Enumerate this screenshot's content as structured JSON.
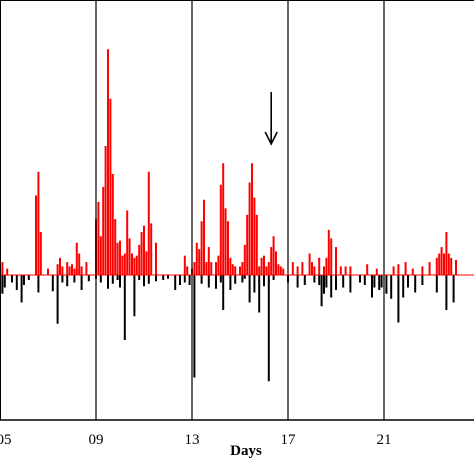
{
  "chart_data": {
    "type": "bar",
    "xlabel": "Days",
    "x_tick_labels": [
      "05",
      "09",
      "13",
      "17",
      "21"
    ],
    "x_tick_values": [
      5,
      9,
      13,
      17,
      21
    ],
    "x_range": [
      5,
      24
    ],
    "y_range": [
      -1,
      1
    ],
    "grid": "vertical lines at day ticks",
    "colors": {
      "positive": "#ff0000",
      "negative": "#000000",
      "baseline": "#ff0000",
      "frame": "#000000"
    },
    "annotation": {
      "type": "arrow",
      "direction": "down",
      "at_day": 16.3
    },
    "series": [
      {
        "sign": "positive",
        "x": [
          5.1,
          5.3,
          6.5,
          6.6,
          6.7,
          7.0,
          7.4,
          7.5,
          7.6,
          7.8,
          7.9,
          8.0,
          8.1,
          8.2,
          8.3,
          8.4,
          8.6,
          9.0,
          9.1,
          9.2,
          9.3,
          9.4,
          9.5,
          9.6,
          9.7,
          9.8,
          9.9,
          10.0,
          10.1,
          10.2,
          10.3,
          10.4,
          10.5,
          10.6,
          10.7,
          10.8,
          10.9,
          11.0,
          11.1,
          11.2,
          11.3,
          11.5,
          12.7,
          12.8,
          13.0,
          13.1,
          13.2,
          13.3,
          13.4,
          13.5,
          13.6,
          13.7,
          13.8,
          14.0,
          14.1,
          14.2,
          14.3,
          14.4,
          14.5,
          14.6,
          14.7,
          14.8,
          15.0,
          15.1,
          15.2,
          15.3,
          15.4,
          15.5,
          15.6,
          15.7,
          15.8,
          15.9,
          16.0,
          16.1,
          16.2,
          16.3,
          16.4,
          16.5,
          16.6,
          16.7,
          16.8,
          17.2,
          17.4,
          17.6,
          17.9,
          18.0,
          18.1,
          18.3,
          18.5,
          18.6,
          18.7,
          18.8,
          19.0,
          19.2,
          19.4,
          19.6,
          20.3,
          20.7,
          21.4,
          21.6,
          21.9,
          22.2,
          22.6,
          22.9,
          23.2,
          23.3,
          23.4,
          23.5,
          23.6,
          23.7,
          23.8,
          24.0
        ],
        "values": [
          0.06,
          0.03,
          0.37,
          0.48,
          0.2,
          0.03,
          0.05,
          0.08,
          0.04,
          0.06,
          0.04,
          0.05,
          0.03,
          0.15,
          0.1,
          0.04,
          0.06,
          0.26,
          0.34,
          0.18,
          0.41,
          0.6,
          1.05,
          0.82,
          0.47,
          0.26,
          0.15,
          0.16,
          0.09,
          0.1,
          0.3,
          0.17,
          0.1,
          0.08,
          0.09,
          0.14,
          0.2,
          0.23,
          0.11,
          0.48,
          0.24,
          0.15,
          0.09,
          0.04,
          0.03,
          0.06,
          0.15,
          0.12,
          0.25,
          0.35,
          0.06,
          0.13,
          0.06,
          0.06,
          0.09,
          0.42,
          0.52,
          0.31,
          0.25,
          0.08,
          0.05,
          0.04,
          0.04,
          0.06,
          0.14,
          0.28,
          0.43,
          0.52,
          0.36,
          0.28,
          0.04,
          0.08,
          0.09,
          0.04,
          0.06,
          0.13,
          0.18,
          0.11,
          0.05,
          0.04,
          0.03,
          0.06,
          0.04,
          0.06,
          0.1,
          0.06,
          0.04,
          0.08,
          0.04,
          0.08,
          0.21,
          0.17,
          0.13,
          0.04,
          0.04,
          0.04,
          0.05,
          0.03,
          0.04,
          0.05,
          0.06,
          0.03,
          0.04,
          0.06,
          0.08,
          0.1,
          0.13,
          0.1,
          0.2,
          0.1,
          0.08,
          0.07
        ]
      },
      {
        "sign": "negative",
        "x": [
          5.1,
          5.2,
          5.5,
          5.7,
          5.9,
          6.0,
          6.2,
          6.6,
          7.2,
          7.4,
          7.6,
          7.8,
          8.1,
          8.4,
          8.7,
          9.0,
          9.2,
          9.5,
          9.7,
          9.9,
          10.0,
          10.2,
          10.6,
          10.8,
          11.0,
          11.2,
          11.5,
          11.8,
          12.0,
          12.3,
          12.5,
          12.7,
          12.9,
          13.1,
          13.4,
          13.7,
          14.0,
          14.2,
          14.3,
          14.6,
          14.8,
          15.1,
          15.2,
          15.4,
          15.6,
          15.8,
          16.0,
          16.2,
          16.4,
          17.0,
          17.4,
          17.7,
          18.1,
          18.3,
          18.4,
          18.5,
          18.6,
          18.8,
          19.0,
          19.3,
          19.6,
          20.0,
          20.2,
          20.5,
          20.6,
          20.8,
          20.9,
          21.1,
          21.3,
          21.6,
          21.8,
          22.0,
          22.3,
          22.6,
          23.2,
          23.6,
          23.9
        ],
        "values": [
          -0.15,
          -0.1,
          -0.06,
          -0.12,
          -0.22,
          -0.08,
          -0.04,
          -0.14,
          -0.13,
          -0.39,
          -0.06,
          -0.09,
          -0.06,
          -0.12,
          -0.05,
          -0.03,
          -0.06,
          -0.11,
          -0.07,
          -0.04,
          -0.1,
          -0.52,
          -0.33,
          -0.04,
          -0.09,
          -0.07,
          -0.05,
          -0.04,
          -0.03,
          -0.12,
          -0.08,
          -0.06,
          -0.08,
          -0.82,
          -0.07,
          -0.1,
          -0.11,
          -0.06,
          -0.28,
          -0.12,
          -0.07,
          -0.06,
          -0.03,
          -0.22,
          -0.14,
          -0.3,
          -0.09,
          -0.85,
          -0.04,
          -0.06,
          -0.1,
          -0.08,
          -0.06,
          -0.08,
          -0.25,
          -0.15,
          -0.1,
          -0.18,
          -0.12,
          -0.1,
          -0.14,
          -0.06,
          -0.08,
          -0.18,
          -0.1,
          -0.12,
          -0.1,
          -0.15,
          -0.19,
          -0.38,
          -0.18,
          -0.1,
          -0.14,
          -0.08,
          -0.14,
          -0.28,
          -0.22
        ]
      }
    ]
  }
}
